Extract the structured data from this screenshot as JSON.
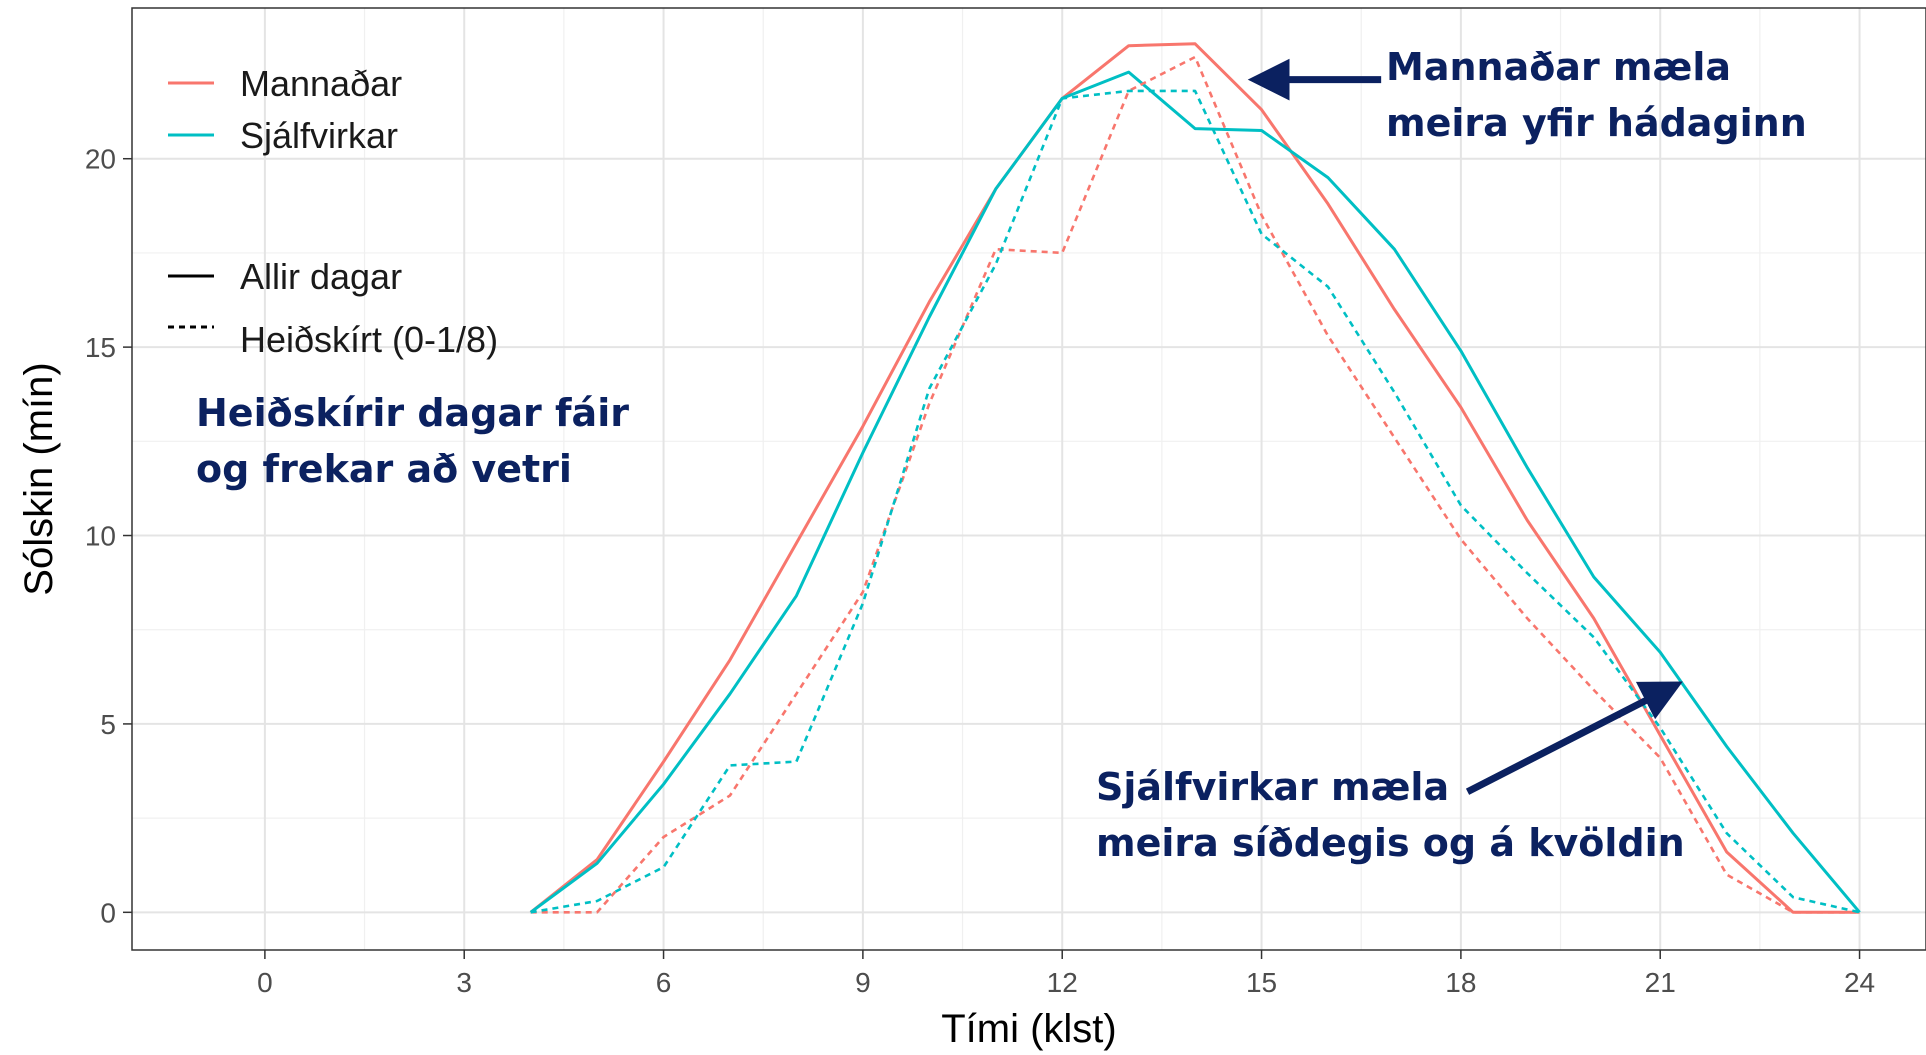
{
  "chart_data": {
    "type": "line",
    "xlabel": "Tími (klst)",
    "ylabel": "Sólskin (mín)",
    "xlim": [
      -2,
      25
    ],
    "ylim": [
      -1,
      24
    ],
    "x_ticks": [
      0,
      3,
      6,
      9,
      12,
      15,
      18,
      21,
      24
    ],
    "y_ticks": [
      0,
      5,
      10,
      15,
      20
    ],
    "grid": true,
    "legend_position": "top-left",
    "legend_color": {
      "title": "",
      "entries": [
        {
          "label": "Mannaðar",
          "color": "#F8766D"
        },
        {
          "label": "Sjálfvirkar",
          "color": "#00BFC4"
        }
      ]
    },
    "legend_linetype": {
      "title": "",
      "entries": [
        {
          "label": "Allir dagar",
          "dash": "solid"
        },
        {
          "label": "Heiðskírt (0-1/8)",
          "dash": "dashed"
        }
      ]
    },
    "series": [
      {
        "name": "Mannaðar",
        "linetype": "Allir dagar",
        "color": "#F8766D",
        "dash": "solid",
        "x": [
          4,
          5,
          6,
          7,
          8,
          9,
          10,
          11,
          12,
          13,
          14,
          15,
          16,
          17,
          18,
          19,
          20,
          21,
          22,
          23,
          24
        ],
        "y": [
          0,
          1.4,
          4.0,
          6.7,
          9.8,
          12.9,
          16.2,
          19.2,
          21.6,
          23.0,
          23.05,
          21.3,
          18.8,
          16.0,
          13.4,
          10.4,
          7.8,
          4.7,
          1.6,
          0,
          0
        ]
      },
      {
        "name": "Sjálfvirkar",
        "linetype": "Allir dagar",
        "color": "#00BFC4",
        "dash": "solid",
        "x": [
          4,
          5,
          6,
          7,
          8,
          9,
          10,
          11,
          12,
          13,
          14,
          15,
          16,
          17,
          18,
          19,
          20,
          21,
          22,
          23,
          24
        ],
        "y": [
          0,
          1.3,
          3.4,
          5.8,
          8.4,
          12.2,
          15.8,
          19.2,
          21.6,
          22.3,
          20.8,
          20.75,
          19.5,
          17.6,
          14.9,
          11.8,
          8.9,
          6.9,
          4.4,
          2.1,
          0
        ]
      },
      {
        "name": "Mannaðar",
        "linetype": "Heiðskírt (0-1/8)",
        "color": "#F8766D",
        "dash": "dashed",
        "x": [
          4,
          5,
          6,
          7,
          8,
          9,
          10,
          11,
          12,
          13,
          14,
          15,
          16,
          17,
          18,
          19,
          20,
          21,
          22,
          23,
          24
        ],
        "y": [
          0,
          0,
          2.0,
          3.1,
          5.8,
          8.5,
          13.5,
          17.6,
          17.5,
          21.8,
          22.7,
          18.5,
          15.3,
          12.6,
          9.9,
          7.8,
          5.9,
          4.1,
          1.0,
          0,
          0
        ]
      },
      {
        "name": "Sjálfvirkar",
        "linetype": "Heiðskírt (0-1/8)",
        "color": "#00BFC4",
        "dash": "dashed",
        "x": [
          4,
          5,
          6,
          7,
          8,
          9,
          10,
          11,
          12,
          13,
          14,
          15,
          16,
          17,
          18,
          19,
          20,
          21,
          22,
          23,
          24
        ],
        "y": [
          0,
          0.3,
          1.2,
          3.9,
          4.0,
          8.2,
          13.9,
          17.2,
          21.6,
          21.8,
          21.8,
          18.0,
          16.6,
          13.8,
          10.8,
          9.0,
          7.3,
          4.9,
          2.1,
          0.4,
          0
        ]
      }
    ],
    "annotations": [
      {
        "lines": [
          "Mannaðar mæla",
          "meira yfir hádaginn"
        ],
        "arrow_to": [
          14.95,
          22.1
        ],
        "arrow_from": [
          16.8,
          22.1
        ]
      },
      {
        "lines": [
          "Sjálfvirkar mæla",
          "meira síðdegis og á kvöldin"
        ],
        "arrow_to": [
          21.2,
          6.0
        ],
        "arrow_from": [
          18.1,
          3.2
        ]
      },
      {
        "lines": [
          "Heiðskírir dagar fáir",
          "og frekar að vetri"
        ]
      }
    ]
  }
}
